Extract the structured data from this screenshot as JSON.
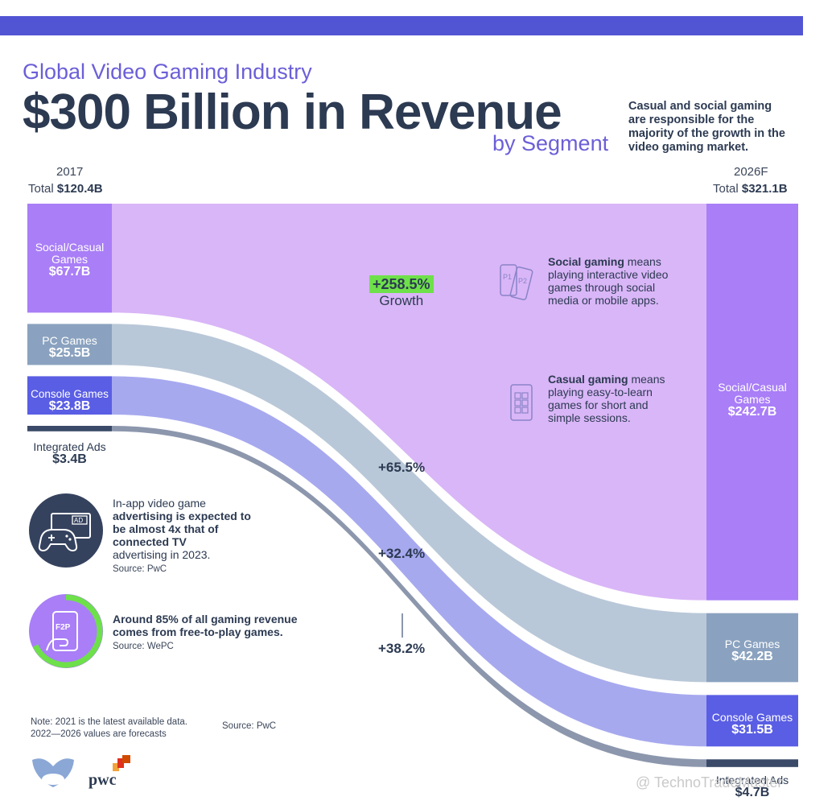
{
  "header": {
    "supertitle": "Global Video Gaming Industry",
    "title": "$300 Billion in Revenue",
    "subtitle": "by Segment",
    "intro": "Casual and social gaming are responsible for the majority of the growth in the video gaming market."
  },
  "left_year": {
    "label": "2017",
    "total_prefix": "Total",
    "total_value": "$120.4B"
  },
  "right_year": {
    "label": "2026F",
    "total_prefix": "Total",
    "total_value": "$321.1B"
  },
  "growth": {
    "social": {
      "pct": "+258.5%",
      "word": "Growth"
    },
    "pc": "+65.5%",
    "console": "+32.4%",
    "ads": "+38.2%"
  },
  "notes": {
    "social": {
      "bold": "Social gaming",
      "rest": " means playing interactive video games through social media or mobile apps."
    },
    "casual": {
      "bold": "Casual gaming",
      "rest": " means playing easy-to-learn games for short and simple sessions."
    },
    "ads_line1": "In-app video game",
    "ads_bold": "advertising is expected to be almost 4x that of connected TV",
    "ads_line3": "advertising in 2023.",
    "ads_source": "Source: PwC",
    "f2p_bold": "Around 85% of all gaming revenue comes from free-to-play games.",
    "f2p_source": "Source: WePC",
    "icon_ad": "AD",
    "icon_f2p": "F2P",
    "icon_p1": "P1",
    "icon_p2": "P2"
  },
  "footer": {
    "note1": "Note: 2021 is the latest available data.",
    "note2": "2022—2026 values are forecasts",
    "source": "Source: PwC",
    "pwc": "pwc",
    "watermark": "@ TechnoTradeMaster"
  },
  "colors": {
    "social": "#a97ef7",
    "social_flow": "#d9b6f7",
    "pc": "#8aa2bf",
    "pc_flow": "#b9c8d8",
    "console": "#5a5ee4",
    "console_flow": "#a7a9ef",
    "ads": "#3b4a68",
    "ads_flow": "#8c97ad",
    "accent": "#5155d4",
    "green": "#6ee04a"
  },
  "chart_data": {
    "type": "sankey",
    "title": "$300 Billion in Revenue by Segment",
    "source_label": "2017",
    "target_label": "2026F",
    "source_total": 120.4,
    "target_total": 321.1,
    "unit": "B USD",
    "segments": [
      {
        "key": "social",
        "name": "Social/Casual Games",
        "value_2017": 67.7,
        "value_2026": 242.7,
        "label_2017": "$67.7B",
        "label_2026": "$242.7B",
        "growth": "+258.5%"
      },
      {
        "key": "pc",
        "name": "PC Games",
        "value_2017": 25.5,
        "value_2026": 42.2,
        "label_2017": "$25.5B",
        "label_2026": "$42.2B",
        "growth": "+65.5%"
      },
      {
        "key": "console",
        "name": "Console Games",
        "value_2017": 23.8,
        "value_2026": 31.5,
        "label_2017": "$23.8B",
        "label_2026": "$31.5B",
        "growth": "+32.4%"
      },
      {
        "key": "ads",
        "name": "Integrated Ads",
        "value_2017": 3.4,
        "value_2026": 4.7,
        "label_2017": "$3.4B",
        "label_2026": "$4.7B",
        "growth": "+38.2%"
      }
    ]
  }
}
